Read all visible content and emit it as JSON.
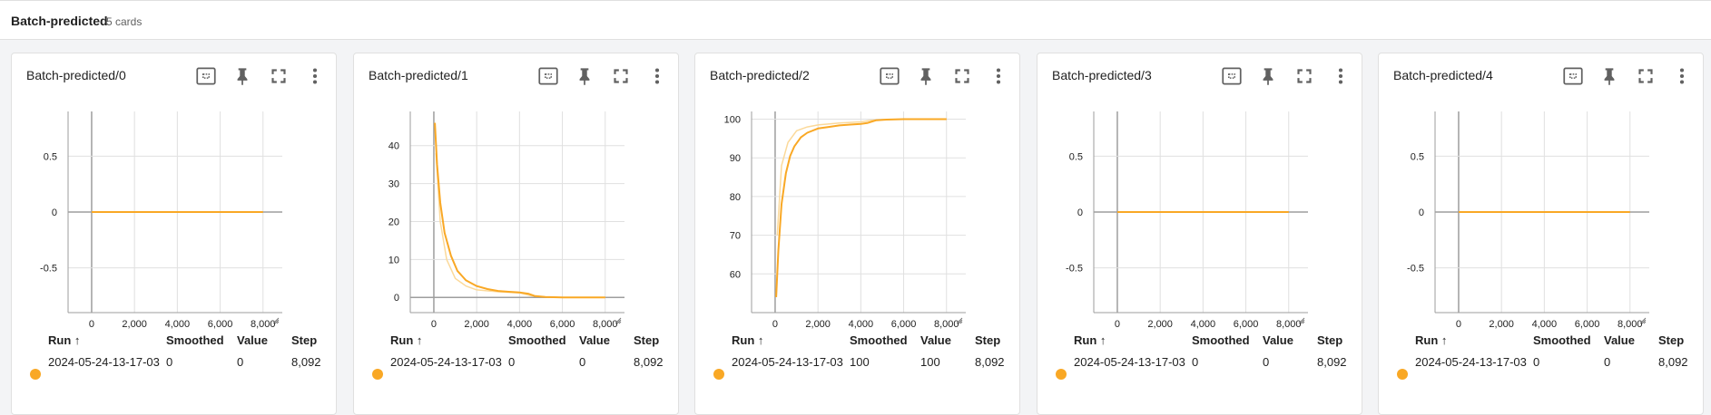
{
  "group": {
    "title": "Batch-predicted",
    "count_label": "5 cards"
  },
  "table_headers": {
    "run": "Run ↑",
    "smoothed": "Smoothed",
    "value": "Value",
    "step": "Step"
  },
  "colors": {
    "series": "#f9a825",
    "series_raw": "#fbd99a",
    "axis": "#9e9e9e",
    "grid": "#e0e0e0"
  },
  "icons": [
    "fit-domain-icon",
    "pin-icon",
    "fullscreen-icon",
    "more-vert-icon"
  ],
  "cards": [
    {
      "title": "Batch-predicted/0",
      "row": {
        "run": "2024-05-24-13-17-03",
        "smoothed": "0",
        "value": "0",
        "step": "8,092"
      },
      "chart_data": {
        "type": "line",
        "x_ticks": [
          "0",
          "2,000",
          "4,000",
          "6,000",
          "8,000"
        ],
        "y_ticks": [
          "0.5",
          "0",
          "-0.5"
        ],
        "xlim": [
          -1100,
          8900
        ],
        "ylim": [
          -0.9,
          0.9
        ],
        "series": [
          {
            "x": [
              0,
              8000
            ],
            "y": [
              0,
              0
            ]
          }
        ]
      }
    },
    {
      "title": "Batch-predicted/1",
      "row": {
        "run": "2024-05-24-13-17-03",
        "smoothed": "0",
        "value": "0",
        "step": "8,092"
      },
      "chart_data": {
        "type": "line",
        "x_ticks": [
          "0",
          "2,000",
          "4,000",
          "6,000",
          "8,000"
        ],
        "y_ticks": [
          "40",
          "30",
          "20",
          "10",
          "0"
        ],
        "xlim": [
          -1100,
          8900
        ],
        "ylim": [
          -4,
          49
        ],
        "series": [
          {
            "x": [
              50,
              150,
              300,
              500,
              800,
              1100,
              1500,
              2000,
              2500,
              3000,
              3500,
              4000,
              4400,
              4700,
              5200,
              6000,
              7000,
              8000
            ],
            "y": [
              46,
              35,
              25,
              17,
              11,
              7,
              4.5,
              3,
              2.2,
              1.7,
              1.5,
              1.3,
              1,
              0.4,
              0.1,
              0,
              0,
              0
            ]
          },
          {
            "raw": true,
            "x": [
              100,
              300,
              600,
              1000,
              1500,
              2000,
              3000,
              4000,
              4500,
              5200,
              6000,
              8000
            ],
            "y": [
              38,
              20,
              10,
              5,
              3,
              2,
              1.5,
              1.2,
              0.5,
              0.1,
              0,
              0
            ]
          }
        ]
      }
    },
    {
      "title": "Batch-predicted/2",
      "row": {
        "run": "2024-05-24-13-17-03",
        "smoothed": "100",
        "value": "100",
        "step": "8,092"
      },
      "chart_data": {
        "type": "line",
        "x_ticks": [
          "0",
          "2,000",
          "4,000",
          "6,000",
          "8,000"
        ],
        "y_ticks": [
          "100",
          "90",
          "80",
          "70",
          "60"
        ],
        "xlim": [
          -1100,
          8900
        ],
        "ylim": [
          50,
          102
        ],
        "series": [
          {
            "x": [
              50,
              150,
              300,
              500,
              700,
              900,
              1200,
              1500,
              2000,
              2500,
              3000,
              3500,
              4000,
              4300,
              4700,
              5200,
              6000,
              7000,
              8000
            ],
            "y": [
              54,
              66,
              78,
              86,
              90.5,
              93,
              95.3,
              96.5,
              97.6,
              98,
              98.4,
              98.6,
              98.8,
              99,
              99.7,
              99.9,
              100,
              100,
              100
            ]
          },
          {
            "raw": true,
            "x": [
              100,
              300,
              600,
              1000,
              1500,
              2000,
              3000,
              4000,
              4500,
              5200,
              6000,
              8000
            ],
            "y": [
              70,
              88,
              94,
              97,
              98,
              98.5,
              99,
              99.3,
              99.7,
              99.9,
              100,
              100
            ]
          }
        ]
      }
    },
    {
      "title": "Batch-predicted/3",
      "row": {
        "run": "2024-05-24-13-17-03",
        "smoothed": "0",
        "value": "0",
        "step": "8,092"
      },
      "chart_data": {
        "type": "line",
        "x_ticks": [
          "0",
          "2,000",
          "4,000",
          "6,000",
          "8,000"
        ],
        "y_ticks": [
          "0.5",
          "0",
          "-0.5"
        ],
        "xlim": [
          -1100,
          8900
        ],
        "ylim": [
          -0.9,
          0.9
        ],
        "series": [
          {
            "x": [
              0,
              8000
            ],
            "y": [
              0,
              0
            ]
          }
        ]
      }
    },
    {
      "title": "Batch-predicted/4",
      "row": {
        "run": "2024-05-24-13-17-03",
        "smoothed": "0",
        "value": "0",
        "step": "8,092"
      },
      "chart_data": {
        "type": "line",
        "x_ticks": [
          "0",
          "2,000",
          "4,000",
          "6,000",
          "8,000"
        ],
        "y_ticks": [
          "0.5",
          "0",
          "-0.5"
        ],
        "xlim": [
          -1100,
          8900
        ],
        "ylim": [
          -0.9,
          0.9
        ],
        "series": [
          {
            "x": [
              0,
              8000
            ],
            "y": [
              0,
              0
            ]
          }
        ]
      }
    }
  ]
}
